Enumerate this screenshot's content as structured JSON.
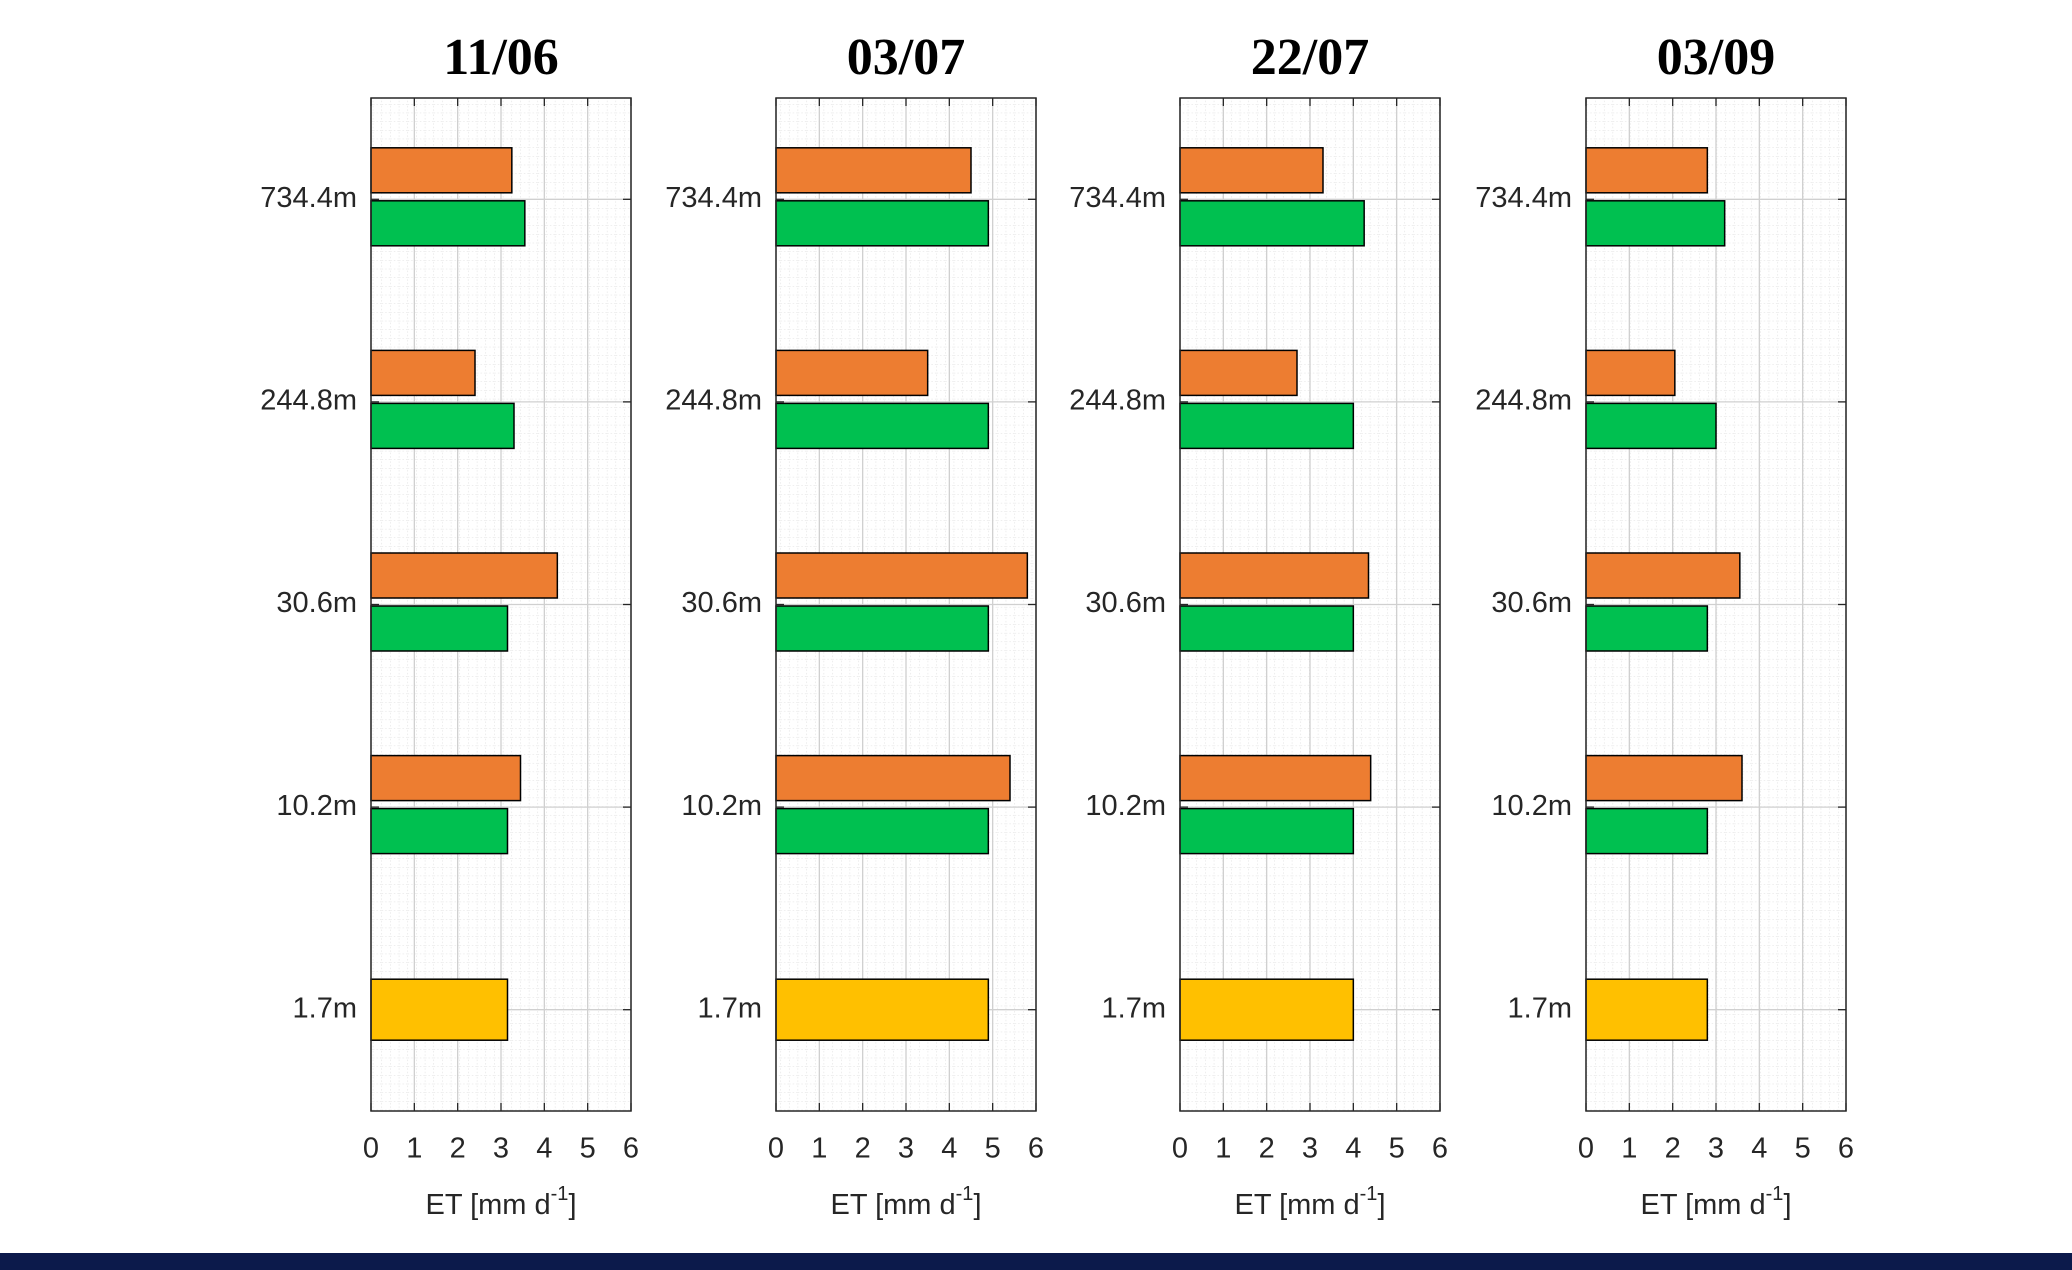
{
  "chart_data": [
    {
      "type": "barh",
      "title": "11/06",
      "categories": [
        "734.4m",
        "244.8m",
        "30.6m",
        "10.2m",
        "1.7m"
      ],
      "xlabel": [
        "ET [mm d",
        "-1",
        "]"
      ],
      "xlim": [
        0,
        6
      ],
      "xticks": [
        0,
        1,
        2,
        3,
        4,
        5,
        6
      ],
      "grid": true,
      "series": [
        {
          "color": "#ed7d31",
          "values": [
            3.25,
            2.4,
            4.3,
            3.45,
            null
          ]
        },
        {
          "color": "#00c050",
          "values": [
            3.55,
            3.3,
            3.15,
            3.15,
            null
          ]
        },
        {
          "color": "#ffc000",
          "values": [
            null,
            null,
            null,
            null,
            3.15
          ]
        }
      ]
    },
    {
      "type": "barh",
      "title": "03/07",
      "categories": [
        "734.4m",
        "244.8m",
        "30.6m",
        "10.2m",
        "1.7m"
      ],
      "xlabel": [
        "ET [mm d",
        "-1",
        "]"
      ],
      "xlim": [
        0,
        6
      ],
      "xticks": [
        0,
        1,
        2,
        3,
        4,
        5,
        6
      ],
      "grid": true,
      "series": [
        {
          "color": "#ed7d31",
          "values": [
            4.5,
            3.5,
            5.8,
            5.4,
            null
          ]
        },
        {
          "color": "#00c050",
          "values": [
            4.9,
            4.9,
            4.9,
            4.9,
            null
          ]
        },
        {
          "color": "#ffc000",
          "values": [
            null,
            null,
            null,
            null,
            4.9
          ]
        }
      ]
    },
    {
      "type": "barh",
      "title": "22/07",
      "categories": [
        "734.4m",
        "244.8m",
        "30.6m",
        "10.2m",
        "1.7m"
      ],
      "xlabel": [
        "ET [mm d",
        "-1",
        "]"
      ],
      "xlim": [
        0,
        6
      ],
      "xticks": [
        0,
        1,
        2,
        3,
        4,
        5,
        6
      ],
      "grid": true,
      "series": [
        {
          "color": "#ed7d31",
          "values": [
            3.3,
            2.7,
            4.35,
            4.4,
            null
          ]
        },
        {
          "color": "#00c050",
          "values": [
            4.25,
            4.0,
            4.0,
            4.0,
            null
          ]
        },
        {
          "color": "#ffc000",
          "values": [
            null,
            null,
            null,
            null,
            4.0
          ]
        }
      ]
    },
    {
      "type": "barh",
      "title": "03/09",
      "categories": [
        "734.4m",
        "244.8m",
        "30.6m",
        "10.2m",
        "1.7m"
      ],
      "xlabel": [
        "ET [mm d",
        "-1",
        "]"
      ],
      "xlim": [
        0,
        6
      ],
      "xticks": [
        0,
        1,
        2,
        3,
        4,
        5,
        6
      ],
      "grid": true,
      "series": [
        {
          "color": "#ed7d31",
          "values": [
            2.8,
            2.05,
            3.55,
            3.6,
            null
          ]
        },
        {
          "color": "#00c050",
          "values": [
            3.2,
            3.0,
            2.8,
            2.8,
            null
          ]
        },
        {
          "color": "#ffc000",
          "values": [
            null,
            null,
            null,
            null,
            2.8
          ]
        }
      ]
    }
  ]
}
